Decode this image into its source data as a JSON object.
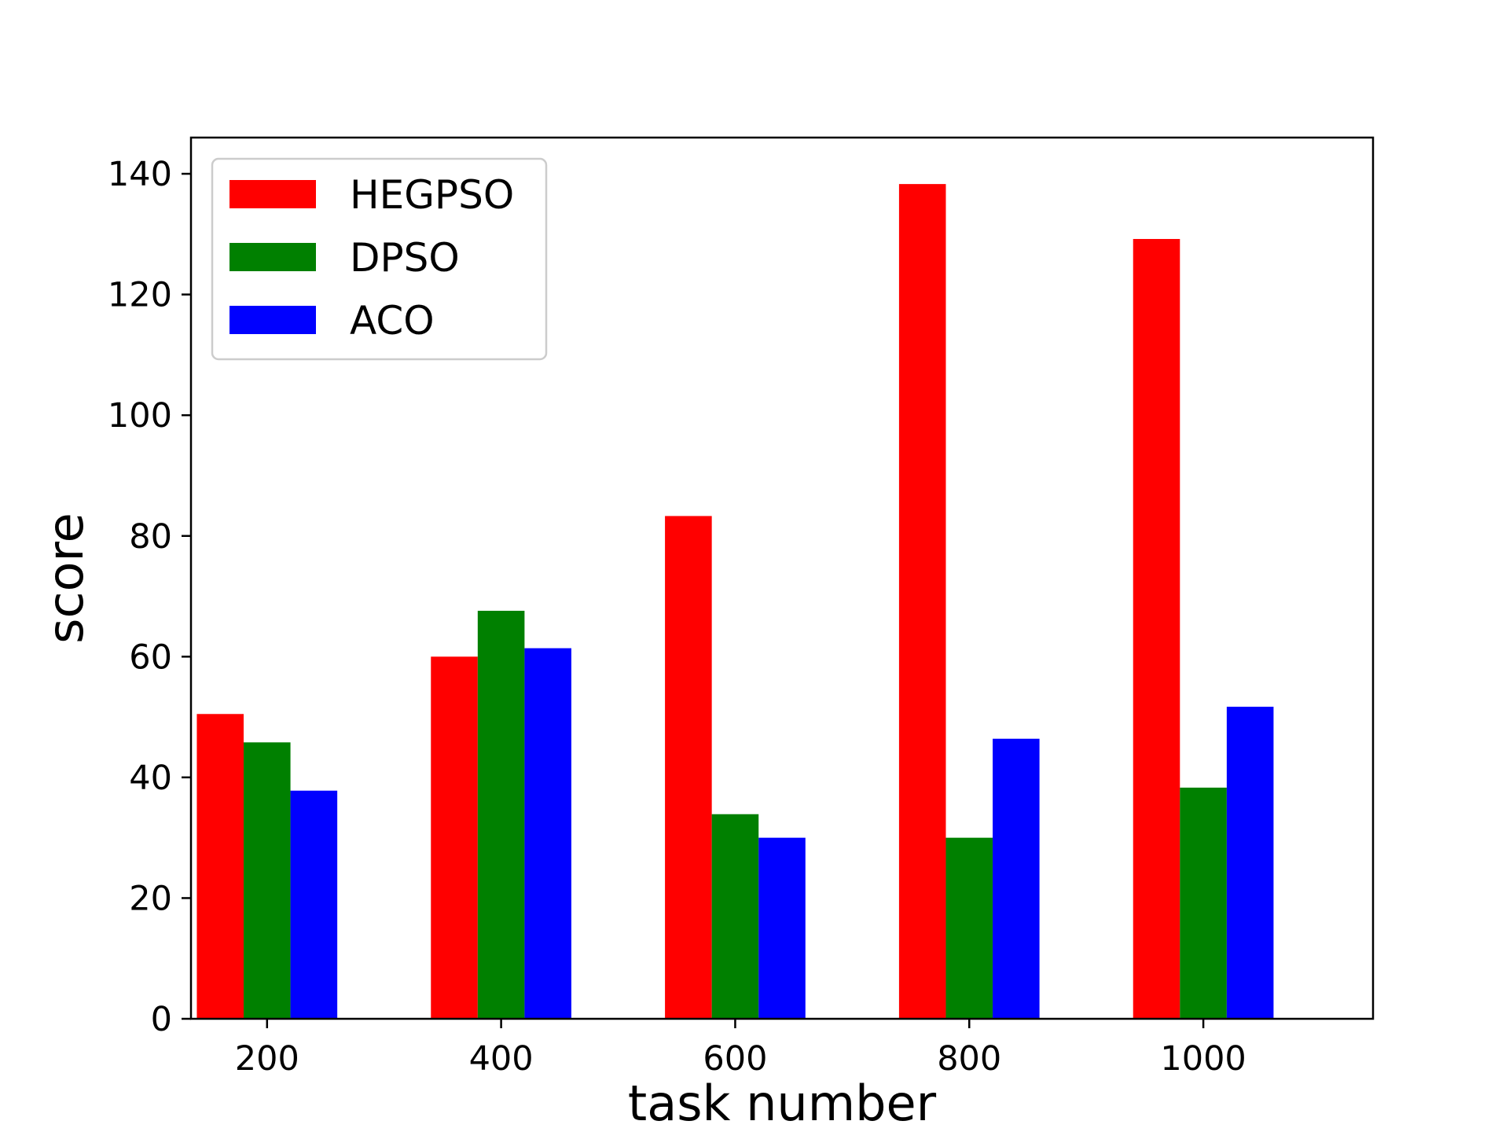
{
  "chart_data": {
    "type": "bar",
    "xlabel": "task number",
    "ylabel": "score",
    "categories": [
      "200",
      "400",
      "600",
      "800",
      "1000"
    ],
    "x": [
      200,
      400,
      600,
      800,
      1000
    ],
    "series": [
      {
        "name": "HEGPSO",
        "color": "#ff0000",
        "values": [
          50.5,
          60.0,
          83.3,
          138.3,
          129.2
        ]
      },
      {
        "name": "DPSO",
        "color": "#008000",
        "values": [
          45.8,
          67.6,
          33.9,
          30.0,
          38.3
        ]
      },
      {
        "name": "ACO",
        "color": "#0000ff",
        "values": [
          37.8,
          61.4,
          30.0,
          46.4,
          51.7
        ]
      }
    ],
    "xlim": [
      135,
      1145
    ],
    "ylim": [
      0,
      146
    ],
    "yticks": [
      0,
      20,
      40,
      60,
      80,
      100,
      120,
      140
    ],
    "xticks": [
      200,
      400,
      600,
      800,
      1000
    ],
    "grid": false,
    "legend": "top-left"
  }
}
